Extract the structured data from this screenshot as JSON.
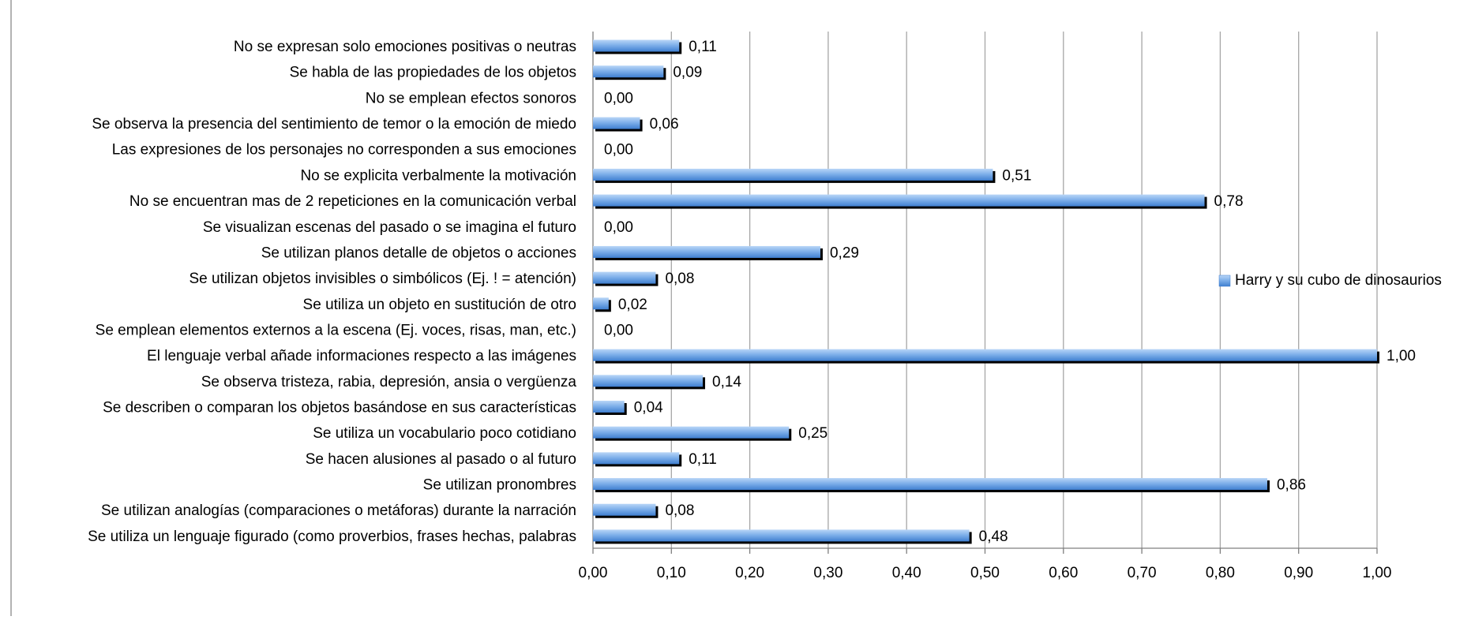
{
  "chart_data": {
    "type": "bar",
    "orientation": "horizontal",
    "title": "",
    "xlabel": "",
    "ylabel": "",
    "xlim": [
      0,
      1
    ],
    "x_ticks": [
      "0,00",
      "0,10",
      "0,20",
      "0,30",
      "0,40",
      "0,50",
      "0,60",
      "0,70",
      "0,80",
      "0,90",
      "1,00"
    ],
    "grid": "vertical",
    "legend_position": "right",
    "categories": [
      "No se expresan solo emociones positivas o neutras",
      "Se habla de las propiedades de los objetos",
      "No se emplean efectos sonoros",
      "Se observa la presencia del sentimiento de temor o la emoción de miedo",
      "Las expresiones de los personajes no corresponden a sus emociones",
      "No se explicita verbalmente la motivación",
      "No se encuentran mas de 2 repeticiones en la comunicación verbal",
      "Se visualizan escenas del pasado o se imagina el futuro",
      "Se utilizan planos detalle de objetos o acciones",
      "Se utilizan objetos invisibles o simbólicos (Ej. ! = atención)",
      "Se utiliza un objeto en sustitución de otro",
      "Se emplean elementos externos a la escena (Ej. voces, risas, man, etc.)",
      "El lenguaje verbal añade informaciones respecto a las imágenes",
      "Se observa tristeza, rabia, depresión, ansia o vergüenza",
      "Se describen o comparan los objetos basándose en sus características",
      "Se utiliza un vocabulario poco cotidiano",
      "Se hacen alusiones al pasado o al futuro",
      "Se utilizan pronombres",
      "Se utilizan analogías (comparaciones o metáforas) durante la narración",
      "Se utiliza un lenguaje figurado (como proverbios, frases hechas, palabras"
    ],
    "series": [
      {
        "name": "Harry y su cubo de dinosaurios",
        "color": "#6aa3e6",
        "values": [
          0.11,
          0.09,
          0.0,
          0.06,
          0.0,
          0.51,
          0.78,
          0.0,
          0.29,
          0.08,
          0.02,
          0.0,
          1.0,
          0.14,
          0.04,
          0.25,
          0.11,
          0.86,
          0.08,
          0.48
        ],
        "value_labels": [
          "0,11",
          "0,09",
          "0,00",
          "0,06",
          "0,00",
          "0,51",
          "0,78",
          "0,00",
          "0,29",
          "0,08",
          "0,02",
          "0,00",
          "1,00",
          "0,14",
          "0,04",
          "0,25",
          "0,11",
          "0,86",
          "0,08",
          "0,48"
        ]
      }
    ]
  }
}
